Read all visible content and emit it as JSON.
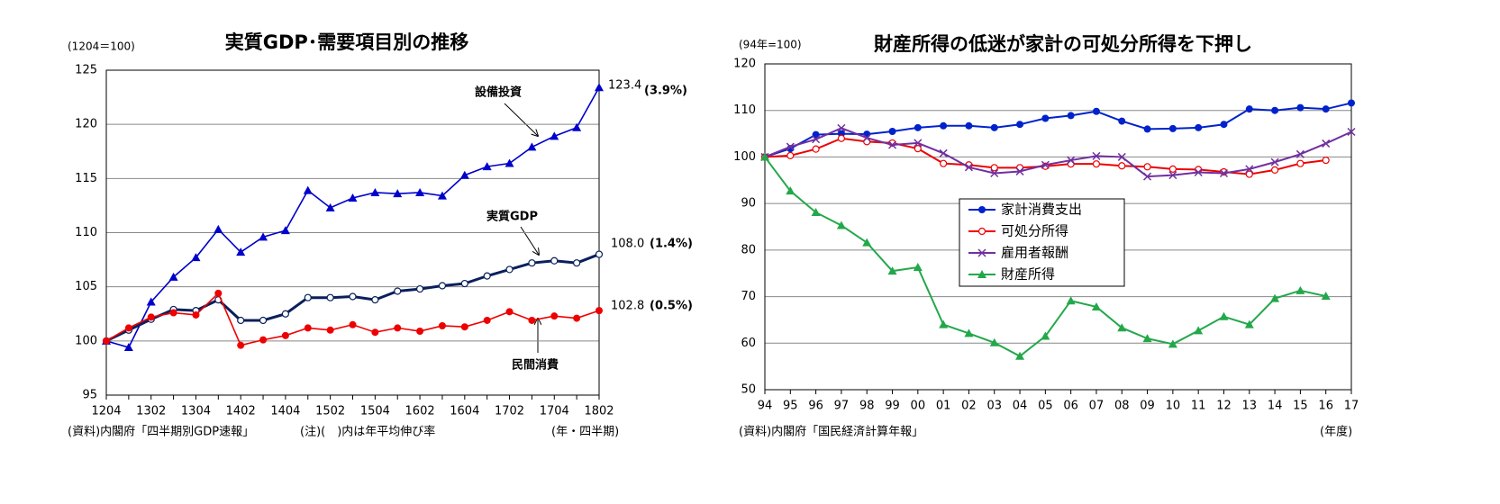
{
  "chart_data": [
    {
      "type": "line",
      "title": "実質GDP･需要項目別の推移",
      "y_label": "(1204＝100)",
      "x_unit": "(年・四半期)",
      "source": "(資料)内閣府「四半期別GDP速報」",
      "note": "(注)(　)内は年平均伸び率",
      "categories": [
        "1204",
        null,
        "1302",
        null,
        "1304",
        null,
        "1402",
        null,
        "1404",
        null,
        "1502",
        null,
        "1504",
        null,
        "1602",
        null,
        "1604",
        null,
        "1702",
        null,
        "1704",
        null,
        "1802"
      ],
      "series": [
        {
          "name": "設備投資",
          "color": "#0000cc",
          "marker": "triangle",
          "values": [
            100,
            99.4,
            103.6,
            105.9,
            107.7,
            110.3,
            108.2,
            109.6,
            110.2,
            113.9,
            112.3,
            113.2,
            113.7,
            113.6,
            113.7,
            113.4,
            115.3,
            116.1,
            116.4,
            117.9,
            118.9,
            119.7,
            123.4
          ]
        },
        {
          "name": "実質GDP",
          "color": "#0a1f5c",
          "marker": "circle-open",
          "values": [
            100,
            101.0,
            102.0,
            102.9,
            102.8,
            103.8,
            101.9,
            101.9,
            102.5,
            104.0,
            104.0,
            104.1,
            103.8,
            104.6,
            104.8,
            105.1,
            105.3,
            106.0,
            106.6,
            107.2,
            107.4,
            107.2,
            108.0
          ]
        },
        {
          "name": "民間消費",
          "color": "#ee0000",
          "marker": "circle",
          "values": [
            100,
            101.2,
            102.2,
            102.6,
            102.4,
            104.4,
            99.6,
            100.1,
            100.5,
            101.2,
            101.0,
            101.5,
            100.8,
            101.2,
            100.9,
            101.4,
            101.3,
            101.9,
            102.7,
            101.9,
            102.3,
            102.1,
            102.8
          ]
        }
      ],
      "annotations": [
        "123.4",
        "(3.9%)",
        "108.0",
        "(1.4%)",
        "102.8",
        "(0.5%)"
      ],
      "ylim": [
        95,
        125
      ],
      "yticks": [
        95,
        100,
        105,
        110,
        115,
        120,
        125
      ],
      "grid": true,
      "legend": "none"
    },
    {
      "type": "line",
      "title": "財産所得の低迷が家計の可処分所得を下押し",
      "y_label": "(94年=100)",
      "x_unit": "(年度)",
      "source": "(資料)内閣府「国民経済計算年報」",
      "categories": [
        "94",
        "95",
        "96",
        "97",
        "98",
        "99",
        "00",
        "01",
        "02",
        "03",
        "04",
        "05",
        "06",
        "07",
        "08",
        "09",
        "10",
        "11",
        "12",
        "13",
        "14",
        "15",
        "16",
        "17"
      ],
      "series": [
        {
          "name": "家計消費支出",
          "color": "#0022cc",
          "marker": "circle",
          "values": [
            100,
            101.8,
            104.8,
            105.0,
            104.9,
            105.5,
            106.3,
            106.7,
            106.7,
            106.3,
            107.0,
            108.3,
            108.9,
            109.8,
            107.7,
            106.0,
            106.1,
            106.3,
            107.0,
            110.3,
            110.0,
            110.6,
            110.3,
            111.6
          ]
        },
        {
          "name": "可処分所得",
          "color": "#ee0000",
          "marker": "circle-open",
          "values": [
            100,
            100.3,
            101.7,
            104.0,
            103.3,
            103.0,
            101.8,
            98.6,
            98.3,
            97.7,
            97.7,
            98.0,
            98.5,
            98.5,
            98.1,
            97.9,
            97.4,
            97.3,
            96.8,
            96.3,
            97.2,
            98.6,
            99.3,
            null
          ]
        },
        {
          "name": "雇用者報酬",
          "color": "#7030a0",
          "marker": "x",
          "values": [
            100,
            102.2,
            103.8,
            106.2,
            104.1,
            102.6,
            103.0,
            100.8,
            97.8,
            96.5,
            96.9,
            98.3,
            99.3,
            100.2,
            100.0,
            95.8,
            96.1,
            96.7,
            96.5,
            97.4,
            98.9,
            100.6,
            102.9,
            105.4
          ]
        },
        {
          "name": "財産所得",
          "color": "#22a84a",
          "marker": "triangle",
          "values": [
            100,
            92.7,
            88.1,
            85.3,
            81.6,
            75.5,
            76.3,
            64.0,
            62.1,
            60.1,
            57.2,
            61.5,
            69.1,
            67.8,
            63.3,
            61.0,
            59.8,
            62.7,
            65.7,
            64.0,
            69.6,
            71.3,
            70.1,
            null
          ]
        }
      ],
      "ylim": [
        50,
        120
      ],
      "yticks": [
        50,
        60,
        70,
        80,
        90,
        100,
        110,
        120
      ],
      "grid": true,
      "legend": "center"
    }
  ]
}
